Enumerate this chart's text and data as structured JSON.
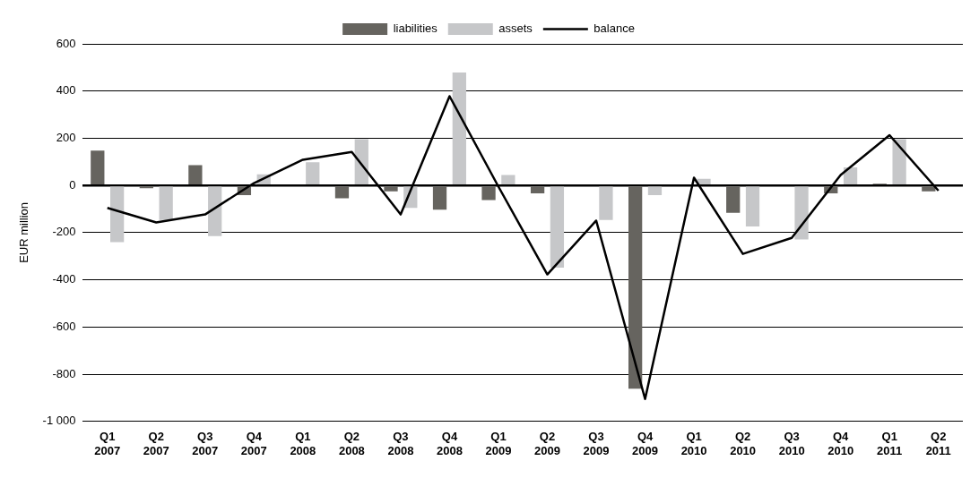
{
  "chart_data": {
    "type": "bar",
    "ylabel": "EUR million",
    "categories": [
      "Q1 2007",
      "Q2 2007",
      "Q3 2007",
      "Q4 2007",
      "Q1 2008",
      "Q2 2008",
      "Q3 2008",
      "Q4 2008",
      "Q1 2009",
      "Q2 2009",
      "Q3 2009",
      "Q4 2009",
      "Q1 2010",
      "Q2 2010",
      "Q3 2010",
      "Q4 2010",
      "Q1 2011",
      "Q2 2011"
    ],
    "series": [
      {
        "name": "liabilities",
        "color": "#66645f",
        "values": [
          148,
          -12,
          86,
          -41,
          0,
          -54,
          -25,
          -103,
          -62,
          -33,
          0,
          -861,
          0,
          -116,
          0,
          -33,
          7,
          -25
        ]
      },
      {
        "name": "assets",
        "color": "#c6c7c9",
        "values": [
          -240,
          -146,
          -215,
          47,
          98,
          196,
          -95,
          479,
          44,
          -348,
          -146,
          -41,
          28,
          -174,
          -229,
          77,
          196,
          0
        ]
      },
      {
        "name": "balance",
        "type": "line",
        "color": "#000000",
        "values": [
          -95,
          -157,
          -123,
          10,
          109,
          142,
          -123,
          378,
          -5,
          -377,
          -149,
          -905,
          33,
          -290,
          -222,
          44,
          213,
          -22
        ]
      }
    ],
    "ylim": [
      -1000,
      600
    ],
    "yticks": [
      {
        "value": -1000,
        "label": "-1 000"
      },
      -800,
      -600,
      -400,
      -200,
      0,
      200,
      400,
      600
    ],
    "grid": "y",
    "legend": "top",
    "marker": "none",
    "line_style": "solid"
  }
}
